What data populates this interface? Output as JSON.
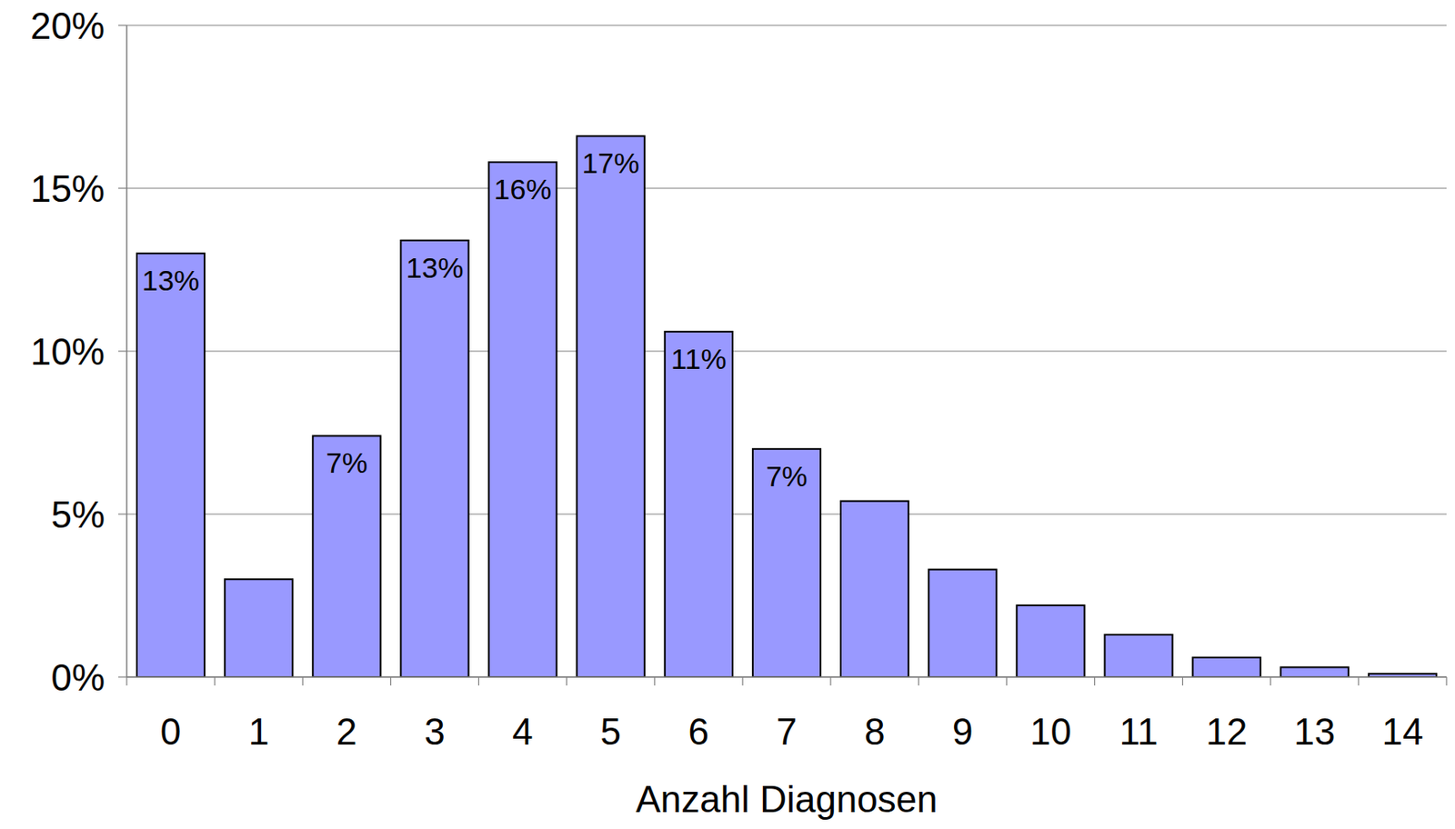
{
  "chart_data": {
    "type": "bar",
    "x_label": "Anzahl Diagnosen",
    "categories": [
      "0",
      "1",
      "2",
      "3",
      "4",
      "5",
      "6",
      "7",
      "8",
      "9",
      "10",
      "11",
      "12",
      "13",
      "14"
    ],
    "values": [
      13.0,
      3.0,
      7.4,
      13.4,
      15.8,
      16.6,
      10.6,
      7.0,
      5.4,
      3.3,
      2.2,
      1.3,
      0.6,
      0.3,
      0.1
    ],
    "value_labels": [
      "13%",
      null,
      "7%",
      "13%",
      "16%",
      "17%",
      "11%",
      "7%",
      null,
      null,
      null,
      null,
      null,
      null,
      null
    ],
    "data_labels": true,
    "color": "#9999ff",
    "ylim": [
      0,
      20
    ],
    "yticks": [
      {
        "value": 0,
        "label": "0%"
      },
      {
        "value": 5,
        "label": "5%"
      },
      {
        "value": 10,
        "label": "10%"
      },
      {
        "value": 15,
        "label": "15%"
      },
      {
        "value": 20,
        "label": "20%"
      }
    ],
    "grid": true
  }
}
